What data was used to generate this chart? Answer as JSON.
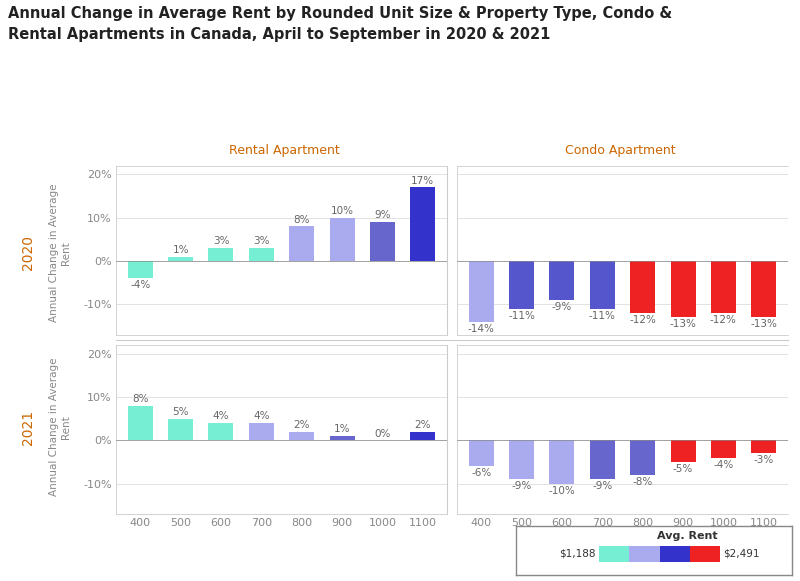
{
  "title": "Annual Change in Average Rent by Rounded Unit Size & Property Type, Condo &\nRental Apartments in Canada, April to September in 2020 & 2021",
  "col_labels": [
    "Rental Apartment",
    "Condo Apartment"
  ],
  "row_labels": [
    "2020",
    "2021"
  ],
  "x_ticks": [
    400,
    500,
    600,
    700,
    800,
    900,
    1000,
    1100
  ],
  "ylabel": "Annual Change in Average\nRent",
  "data": {
    "2020": {
      "rental": {
        "values": [
          -4,
          1,
          3,
          3,
          8,
          10,
          9,
          17
        ],
        "colors": [
          "#76EED4",
          "#76EED4",
          "#76EED4",
          "#76EED4",
          "#AAAAEE",
          "#AAAAEE",
          "#6666CC",
          "#3333CC"
        ]
      },
      "condo": {
        "values": [
          -14,
          -11,
          -9,
          -11,
          -12,
          -13,
          -12,
          -13
        ],
        "colors": [
          "#AAAAEE",
          "#5555CC",
          "#5555CC",
          "#5555CC",
          "#EE2222",
          "#EE2222",
          "#EE2222",
          "#EE2222"
        ]
      }
    },
    "2021": {
      "rental": {
        "values": [
          8,
          5,
          4,
          4,
          2,
          1,
          0,
          2
        ],
        "colors": [
          "#76EED4",
          "#76EED4",
          "#76EED4",
          "#AAAAEE",
          "#AAAAEE",
          "#6666CC",
          "#3333CC",
          "#3333CC"
        ]
      },
      "condo": {
        "values": [
          -6,
          -9,
          -10,
          -9,
          -8,
          -5,
          -4,
          -3
        ],
        "colors": [
          "#AAAAEE",
          "#AAAAEE",
          "#AAAAEE",
          "#6666CC",
          "#6666CC",
          "#EE2222",
          "#EE2222",
          "#EE2222"
        ]
      }
    }
  },
  "legend_colors": [
    "#76EED4",
    "#AAAAEE",
    "#3333CC",
    "#EE2222"
  ],
  "legend_min": "$1,188",
  "legend_max": "$2,491",
  "title_color": "#222222",
  "label_color": "#CC6600",
  "bar_text_color": "#666666",
  "tick_color": "#888888"
}
